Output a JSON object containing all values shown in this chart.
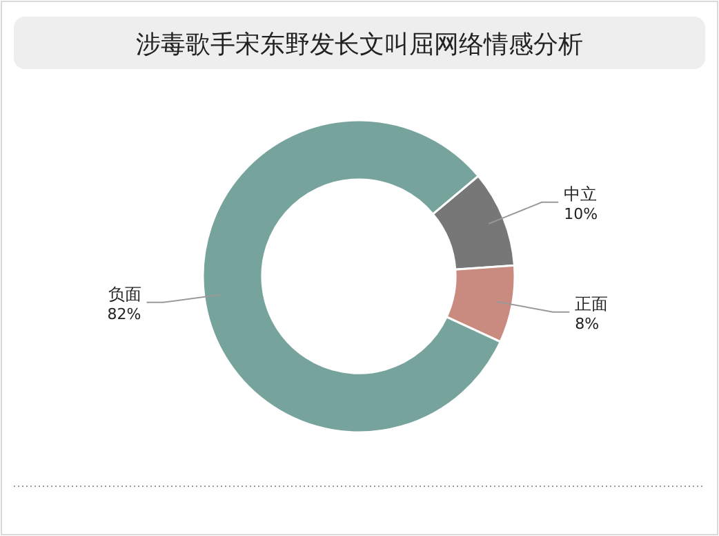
{
  "chart_data": {
    "type": "donut",
    "title": "涉毒歌手宋东野发长文叫屈网络情感分析",
    "categories": [
      "中立",
      "正面",
      "负面"
    ],
    "values": [
      10,
      8,
      82
    ],
    "value_labels": [
      "10%",
      "8%",
      "82%"
    ],
    "colors": [
      "#777777",
      "#c98a80",
      "#76a39b"
    ]
  }
}
